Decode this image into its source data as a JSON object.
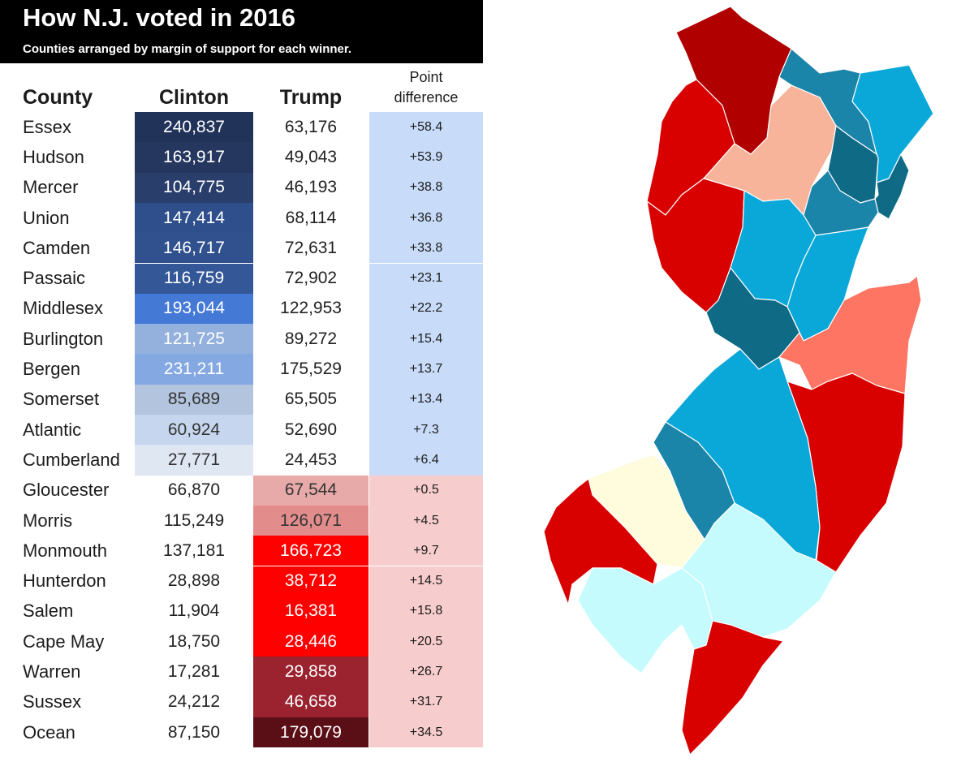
{
  "header": {
    "title": "How N.J. voted in 2016",
    "subtitle": "Counties arranged by margin of support for each winner."
  },
  "columns": {
    "county": "County",
    "clinton": "Clinton",
    "trump": "Trump",
    "point_line1": "Point",
    "point_line2": "difference"
  },
  "rows": [
    {
      "county": "Essex",
      "clinton": "240,837",
      "trump": "63,176",
      "diff": "+58.4",
      "winner": "clinton",
      "fill": "#22335a",
      "text": "#ffffff"
    },
    {
      "county": "Hudson",
      "clinton": "163,917",
      "trump": "49,043",
      "diff": "+53.9",
      "winner": "clinton",
      "fill": "#25375f",
      "text": "#ffffff"
    },
    {
      "county": "Mercer",
      "clinton": "104,775",
      "trump": "46,193",
      "diff": "+38.8",
      "winner": "clinton",
      "fill": "#293e6a",
      "text": "#ffffff"
    },
    {
      "county": "Union",
      "clinton": "147,414",
      "trump": "68,114",
      "diff": "+36.8",
      "winner": "clinton",
      "fill": "#2f4f8c",
      "text": "#ffffff"
    },
    {
      "county": "Camden",
      "clinton": "146,717",
      "trump": "72,631",
      "diff": "+33.8",
      "winner": "clinton",
      "fill": "#30518e",
      "text": "#ffffff"
    },
    {
      "county": "Passaic",
      "clinton": "116,759",
      "trump": "72,902",
      "diff": "+23.1",
      "winner": "clinton",
      "fill": "#335797",
      "text": "#ffffff"
    },
    {
      "county": "Middlesex",
      "clinton": "193,044",
      "trump": "122,953",
      "diff": "+22.2",
      "winner": "clinton",
      "fill": "#4479d6",
      "text": "#ffffff"
    },
    {
      "county": "Burlington",
      "clinton": "121,725",
      "trump": "89,272",
      "diff": "+15.4",
      "winner": "clinton",
      "fill": "#94b1dd",
      "text": "#ffffff"
    },
    {
      "county": "Bergen",
      "clinton": "231,211",
      "trump": "175,529",
      "diff": "+13.7",
      "winner": "clinton",
      "fill": "#84a9e2",
      "text": "#ffffff"
    },
    {
      "county": "Somerset",
      "clinton": "85,689",
      "trump": "65,505",
      "diff": "+13.4",
      "winner": "clinton",
      "fill": "#b3c4de",
      "text": "#333333"
    },
    {
      "county": "Atlantic",
      "clinton": "60,924",
      "trump": "52,690",
      "diff": "+7.3",
      "winner": "clinton",
      "fill": "#c6d6ee",
      "text": "#333333"
    },
    {
      "county": "Cumberland",
      "clinton": "27,771",
      "trump": "24,453",
      "diff": "+6.4",
      "winner": "clinton",
      "fill": "#dfe7f3",
      "text": "#333333"
    },
    {
      "county": "Gloucester",
      "clinton": "66,870",
      "trump": "67,544",
      "diff": "+0.5",
      "winner": "trump",
      "fill": "#e8a9a9",
      "text": "#333333"
    },
    {
      "county": "Morris",
      "clinton": "115,249",
      "trump": "126,071",
      "diff": "+4.5",
      "winner": "trump",
      "fill": "#e28c8c",
      "text": "#333333"
    },
    {
      "county": "Monmouth",
      "clinton": "137,181",
      "trump": "166,723",
      "diff": "+9.7",
      "winner": "trump",
      "fill": "#ff0000",
      "text": "#ffffff"
    },
    {
      "county": "Hunterdon",
      "clinton": "28,898",
      "trump": "38,712",
      "diff": "+14.5",
      "winner": "trump",
      "fill": "#ff0000",
      "text": "#ffffff"
    },
    {
      "county": "Salem",
      "clinton": "11,904",
      "trump": "16,381",
      "diff": "+15.8",
      "winner": "trump",
      "fill": "#ff0000",
      "text": "#ffffff"
    },
    {
      "county": "Cape May",
      "clinton": "18,750",
      "trump": "28,446",
      "diff": "+20.5",
      "winner": "trump",
      "fill": "#ff0000",
      "text": "#ffffff"
    },
    {
      "county": "Warren",
      "clinton": "17,281",
      "trump": "29,858",
      "diff": "+26.7",
      "winner": "trump",
      "fill": "#9b2330",
      "text": "#ffffff"
    },
    {
      "county": "Sussex",
      "clinton": "24,212",
      "trump": "46,658",
      "diff": "+31.7",
      "winner": "trump",
      "fill": "#9b2330",
      "text": "#ffffff"
    },
    {
      "county": "Ocean",
      "clinton": "87,150",
      "trump": "179,079",
      "diff": "+34.5",
      "winner": "trump",
      "fill": "#5a0f17",
      "text": "#ffffff"
    }
  ],
  "diff_colors": {
    "clinton": "#c8dbf8",
    "trump": "#f7cccc"
  },
  "map": {
    "counties": [
      {
        "name": "Sussex",
        "fill": "#b00000"
      },
      {
        "name": "Warren",
        "fill": "#d90000"
      },
      {
        "name": "Morris",
        "fill": "#f7b49b"
      },
      {
        "name": "Passaic",
        "fill": "#1b84a9"
      },
      {
        "name": "Bergen",
        "fill": "#0aa8d9"
      },
      {
        "name": "Essex",
        "fill": "#0f6a86"
      },
      {
        "name": "Hudson",
        "fill": "#0f6a86"
      },
      {
        "name": "Union",
        "fill": "#1b84a9"
      },
      {
        "name": "Hunterdon",
        "fill": "#d90000"
      },
      {
        "name": "Somerset",
        "fill": "#0aa8d9"
      },
      {
        "name": "Middlesex",
        "fill": "#0aa8d9"
      },
      {
        "name": "Mercer",
        "fill": "#0f6a86"
      },
      {
        "name": "Monmouth",
        "fill": "#ff7563"
      },
      {
        "name": "Ocean",
        "fill": "#d90000"
      },
      {
        "name": "Burlington",
        "fill": "#0aa8d9"
      },
      {
        "name": "Camden",
        "fill": "#1b84a9"
      },
      {
        "name": "Gloucester",
        "fill": "#fffbdd"
      },
      {
        "name": "Salem",
        "fill": "#d90000"
      },
      {
        "name": "Cumberland",
        "fill": "#c5fbfc"
      },
      {
        "name": "Atlantic",
        "fill": "#c5fbfc"
      },
      {
        "name": "Cape May",
        "fill": "#d90000"
      }
    ]
  }
}
